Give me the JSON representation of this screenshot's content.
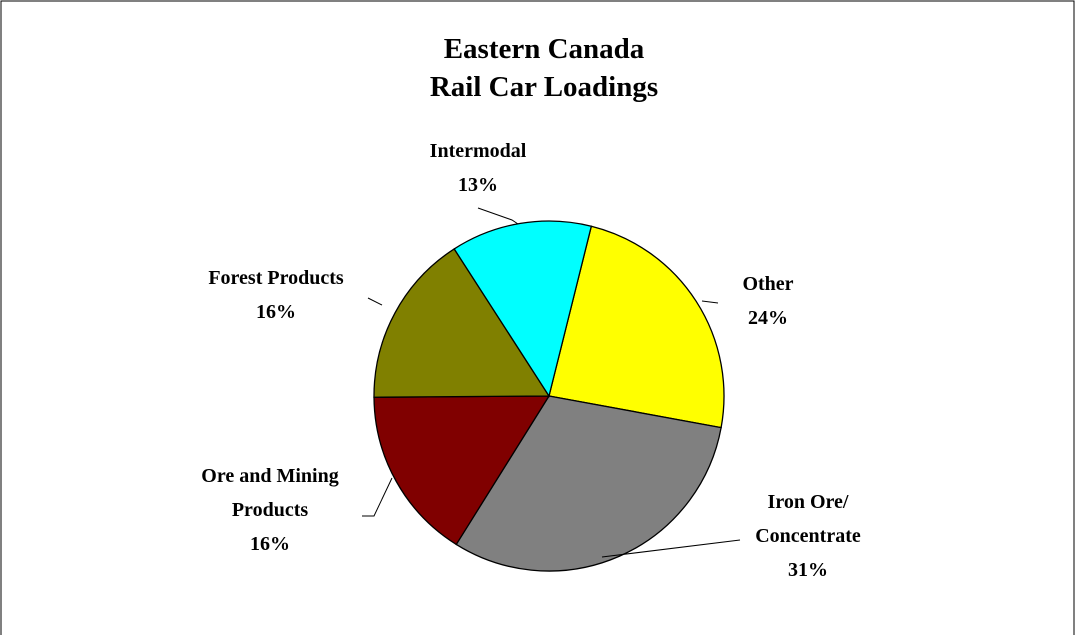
{
  "chart_data": {
    "type": "pie",
    "title": [
      "Eastern Canada",
      "Rail Car Loadings"
    ],
    "categories": [
      [
        "Other"
      ],
      [
        "Iron Ore/",
        "Concentrate"
      ],
      [
        "Ore and Mining",
        "Products"
      ],
      [
        "Forest Products"
      ],
      [
        "Intermodal"
      ]
    ],
    "values": [
      24,
      31,
      16,
      16,
      13
    ],
    "value_labels": [
      "24%",
      "31%",
      "16%",
      "16%",
      "13%"
    ],
    "colors": [
      "#ffff00",
      "#808080",
      "#800000",
      "#808000",
      "#00ffff"
    ]
  }
}
